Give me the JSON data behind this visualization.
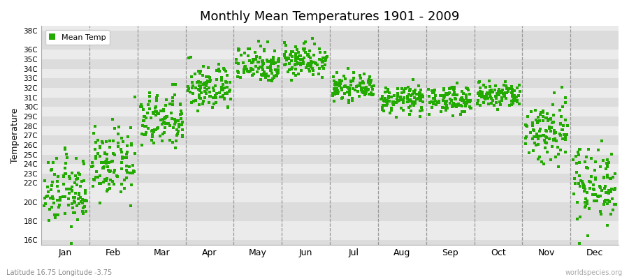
{
  "title": "Monthly Mean Temperatures 1901 - 2009",
  "ylabel": "Temperature",
  "xlabel_labels": [
    "Jan",
    "Feb",
    "Mar",
    "Apr",
    "May",
    "Jun",
    "Jul",
    "Aug",
    "Sep",
    "Oct",
    "Nov",
    "Dec"
  ],
  "ytick_labels": [
    "16C",
    "18C",
    "20C",
    "22C",
    "23C",
    "24C",
    "25C",
    "26C",
    "27C",
    "28C",
    "29C",
    "30C",
    "31C",
    "32C",
    "33C",
    "34C",
    "35C",
    "36C",
    "38C"
  ],
  "ytick_values": [
    16,
    18,
    20,
    22,
    23,
    24,
    25,
    26,
    27,
    28,
    29,
    30,
    31,
    32,
    33,
    34,
    35,
    36,
    38
  ],
  "ylim": [
    15.5,
    38.5
  ],
  "marker_color": "#22AA00",
  "marker": "s",
  "marker_size": 3,
  "legend_label": "Mean Temp",
  "subtitle": "Latitude 16.75 Longitude -3.75",
  "watermark": "worldspecies.org",
  "background_color": "#FFFFFF",
  "plot_bg_color": "#EBEBEB",
  "hband_colors": [
    "#DCDCDC",
    "#EBEBEB"
  ],
  "monthly_means": [
    21.0,
    24.0,
    28.5,
    32.0,
    34.5,
    35.0,
    32.0,
    30.8,
    30.8,
    31.2,
    27.5,
    22.0
  ],
  "monthly_stds": [
    1.8,
    1.8,
    1.5,
    1.2,
    1.0,
    0.9,
    0.6,
    0.7,
    0.7,
    0.7,
    1.8,
    2.0
  ],
  "n_years": 109
}
